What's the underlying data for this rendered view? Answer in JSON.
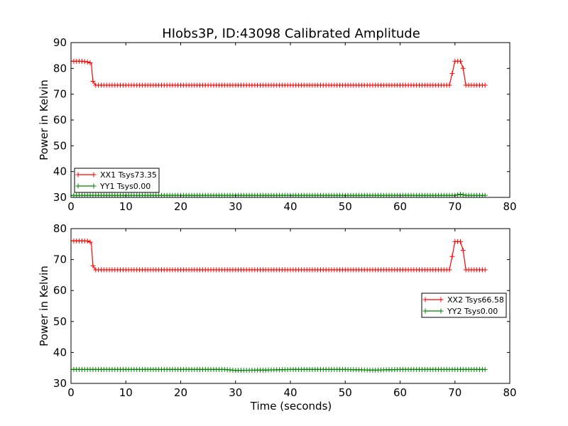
{
  "figure": {
    "title": "HIobs3P, ID:43098 Calibrated Amplitude",
    "xlabel": "Time (seconds)"
  },
  "chart_data": [
    {
      "type": "line",
      "ylabel": "Power in Kelvin",
      "xlim": [
        0,
        80
      ],
      "ylim": [
        30,
        90
      ],
      "xticks": [
        0,
        10,
        20,
        30,
        40,
        50,
        60,
        70,
        80
      ],
      "yticks": [
        30,
        40,
        50,
        60,
        70,
        80,
        90
      ],
      "grid": false,
      "legend_position": "lower-left",
      "series": [
        {
          "name": "XX1 Tsys73.35",
          "color": "#ff0000",
          "marker": "+",
          "x": [
            0,
            1,
            2,
            3,
            3.7,
            4.0,
            4.5,
            69.0,
            69.5,
            70.0,
            71.0,
            71.5,
            72.0,
            75.5
          ],
          "y": [
            82.8,
            82.8,
            82.8,
            82.5,
            82.0,
            75.0,
            73.5,
            73.5,
            78.0,
            82.8,
            82.8,
            80.0,
            73.5,
            73.5
          ]
        },
        {
          "name": "YY1 Tsys0.00",
          "color": "#008000",
          "marker": "+",
          "x": [
            0,
            70,
            71,
            72,
            75.5
          ],
          "y": [
            30.8,
            30.8,
            31.2,
            30.8,
            30.8
          ]
        }
      ]
    },
    {
      "type": "line",
      "ylabel": "Power in Kelvin",
      "xlabel": "Time (seconds)",
      "xlim": [
        0,
        80
      ],
      "ylim": [
        30,
        80
      ],
      "xticks": [
        0,
        10,
        20,
        30,
        40,
        50,
        60,
        70,
        80
      ],
      "yticks": [
        30,
        40,
        50,
        60,
        70,
        80
      ],
      "grid": false,
      "legend_position": "center-right",
      "series": [
        {
          "name": "XX2 Tsys66.58",
          "color": "#ff0000",
          "marker": "+",
          "x": [
            0,
            1,
            2,
            3,
            3.7,
            4.0,
            4.5,
            69.0,
            69.5,
            70.0,
            71.0,
            71.5,
            72.0,
            75.5
          ],
          "y": [
            76.0,
            76.0,
            76.0,
            76.0,
            75.5,
            68.0,
            66.7,
            66.7,
            71.0,
            75.8,
            75.8,
            73.0,
            66.7,
            66.7
          ]
        },
        {
          "name": "YY2 Tsys0.00",
          "color": "#008000",
          "marker": "+",
          "x": [
            0,
            20,
            28,
            30,
            35,
            40,
            50,
            55,
            60,
            75.5
          ],
          "y": [
            34.5,
            34.5,
            34.5,
            34.2,
            34.3,
            34.5,
            34.5,
            34.3,
            34.5,
            34.5
          ]
        }
      ]
    }
  ]
}
